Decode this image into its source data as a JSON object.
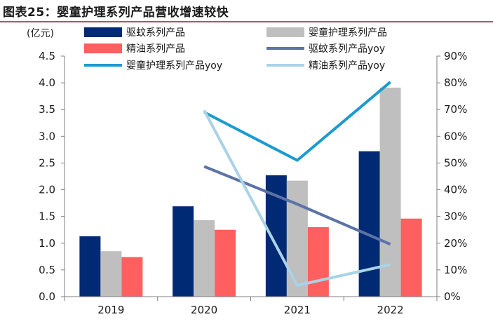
{
  "title": "图表25：婴童护理系列产品营收增速较快",
  "chart_data": {
    "type": "bar",
    "categories": [
      "2019",
      "2020",
      "2021",
      "2022"
    ],
    "left_axis": {
      "unit": "(亿元)",
      "range": [
        0,
        4.5
      ],
      "ticks": [
        "0.0",
        "0.5",
        "1.0",
        "1.5",
        "2.0",
        "2.5",
        "3.0",
        "3.5",
        "4.0",
        "4.5"
      ]
    },
    "right_axis": {
      "range": [
        0,
        90
      ],
      "ticks": [
        "0%",
        "10%",
        "20%",
        "30%",
        "40%",
        "50%",
        "60%",
        "70%",
        "80%",
        "90%"
      ]
    },
    "series": [
      {
        "name": "驱蚊系列产品",
        "type": "bar",
        "axis": "left",
        "color": "#002a73",
        "values": [
          1.13,
          1.69,
          2.27,
          2.72
        ]
      },
      {
        "name": "婴童护理系列产品",
        "type": "bar",
        "axis": "left",
        "color": "#bfbfbf",
        "values": [
          0.85,
          1.43,
          2.17,
          3.91
        ]
      },
      {
        "name": "精油系列产品",
        "type": "bar",
        "axis": "left",
        "color": "#ff5f5f",
        "values": [
          0.74,
          1.25,
          1.3,
          1.46
        ]
      },
      {
        "name": "驱蚊系列产品yoy",
        "type": "line",
        "axis": "right",
        "color": "#5b73a6",
        "values": [
          null,
          48.7,
          34.6,
          19.6
        ]
      },
      {
        "name": "婴童护理系列产品yoy",
        "type": "line",
        "axis": "right",
        "color": "#1a9bd0",
        "values": [
          null,
          69.0,
          51.0,
          80.3
        ]
      },
      {
        "name": "精油系列产品yoy",
        "type": "line",
        "axis": "right",
        "color": "#a9d3e6",
        "values": [
          null,
          69.7,
          4.2,
          12.0
        ]
      }
    ],
    "legend": {
      "rows": [
        [
          "驱蚊系列产品",
          "婴童护理系列产品"
        ],
        [
          "精油系列产品",
          "驱蚊系列产品yoy"
        ],
        [
          "婴童护理系列产品yoy",
          "精油系列产品yoy"
        ]
      ],
      "placement": "top"
    },
    "grid": false
  }
}
